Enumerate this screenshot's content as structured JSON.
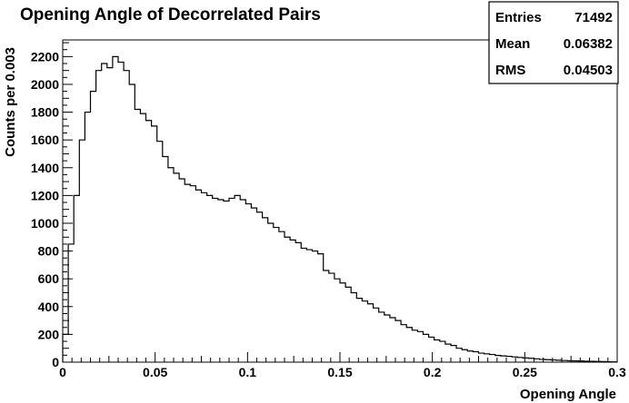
{
  "chart_data": {
    "type": "histogram",
    "title": "Opening Angle of Decorrelated Pairs",
    "xlabel": "Opening Angle",
    "ylabel": "Counts per 0.003",
    "xlim": [
      0,
      0.3
    ],
    "ylim": [
      0,
      2320
    ],
    "bin_width": 0.003,
    "x_ticks": [
      0,
      0.05,
      0.1,
      0.15,
      0.2,
      0.25,
      0.3
    ],
    "x_tick_labels": [
      "0",
      "0.05",
      "0.1",
      "0.15",
      "0.2",
      "0.25",
      "0.3"
    ],
    "y_ticks": [
      0,
      200,
      400,
      600,
      800,
      1000,
      1200,
      1400,
      1600,
      1800,
      2000,
      2200
    ],
    "y_tick_labels": [
      "0",
      "200",
      "400",
      "600",
      "800",
      "1000",
      "1200",
      "1400",
      "1600",
      "1800",
      "2000",
      "2200"
    ],
    "grid": false,
    "values": [
      200,
      850,
      1200,
      1600,
      1800,
      1950,
      2100,
      2150,
      2120,
      2200,
      2160,
      2100,
      2000,
      1820,
      1790,
      1740,
      1700,
      1590,
      1480,
      1400,
      1360,
      1320,
      1280,
      1270,
      1240,
      1220,
      1200,
      1180,
      1170,
      1160,
      1180,
      1200,
      1170,
      1140,
      1110,
      1080,
      1040,
      1000,
      970,
      940,
      900,
      880,
      860,
      820,
      810,
      800,
      780,
      660,
      640,
      600,
      570,
      540,
      500,
      460,
      440,
      420,
      390,
      360,
      340,
      320,
      300,
      270,
      250,
      230,
      220,
      200,
      180,
      160,
      150,
      130,
      120,
      100,
      90,
      80,
      75,
      65,
      60,
      55,
      48,
      45,
      42,
      38,
      34,
      30,
      28,
      24,
      20,
      18,
      16,
      14,
      12,
      10,
      9,
      8,
      7,
      6,
      5,
      4,
      3,
      2
    ],
    "stats": {
      "entries_label": "Entries",
      "entries_value": "71492",
      "mean_label": "Mean",
      "mean_value": "0.06382",
      "rms_label": "RMS",
      "rms_value": "0.04503"
    },
    "line_color": "#000000"
  }
}
